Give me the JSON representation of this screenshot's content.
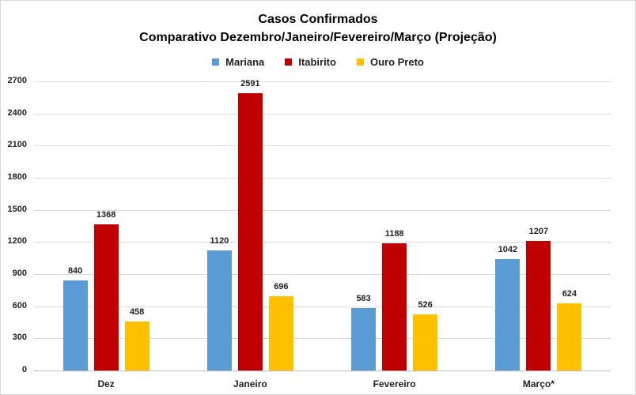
{
  "chart_data": {
    "type": "bar",
    "title": "Casos Confirmados",
    "subtitle": "Comparativo Dezembro/Janeiro/Fevereiro/Março (Projeção)",
    "xlabel": "",
    "ylabel": "",
    "ylim": [
      0,
      2700
    ],
    "yticks": [
      0,
      300,
      600,
      900,
      1200,
      1500,
      1800,
      2100,
      2400,
      2700
    ],
    "grid": true,
    "legend_position": "top",
    "categories": [
      "Dez",
      "Janeiro",
      "Fevereiro",
      "Março*"
    ],
    "series": [
      {
        "name": "Mariana",
        "color": "#5b9bd5",
        "values": [
          840,
          1120,
          583,
          1042
        ]
      },
      {
        "name": "Itabirito",
        "color": "#c00000",
        "values": [
          1368,
          2591,
          1188,
          1207
        ]
      },
      {
        "name": "Ouro Preto",
        "color": "#ffc000",
        "values": [
          458,
          696,
          526,
          624
        ]
      }
    ]
  }
}
